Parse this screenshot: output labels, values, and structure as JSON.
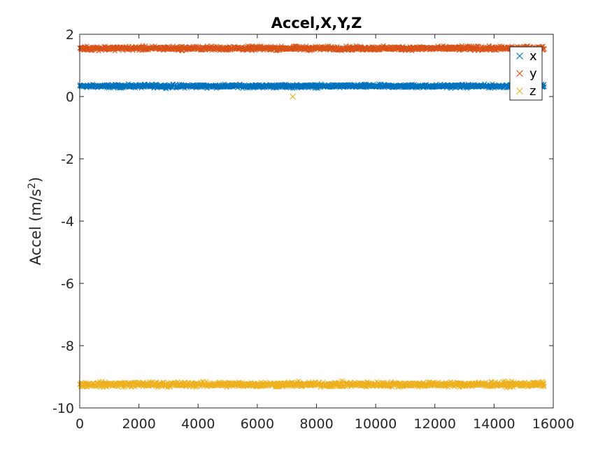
{
  "chart_data": {
    "type": "scatter",
    "title": "Accel,X,Y,Z",
    "xlabel": "",
    "ylabel": "Accel (m/s",
    "ylabel_superscript": "2",
    "ylabel_suffix": ")",
    "xlim": [
      0,
      16000
    ],
    "ylim": [
      -10,
      2
    ],
    "x_ticks": [
      0,
      2000,
      4000,
      6000,
      8000,
      10000,
      12000,
      14000,
      16000
    ],
    "y_ticks": [
      -10,
      -8,
      -6,
      -4,
      -2,
      0,
      2
    ],
    "grid": false,
    "legend_position": "top-right",
    "marker": "x",
    "series": [
      {
        "name": "x",
        "color": "#0072BD",
        "x_range": [
          0,
          15700
        ],
        "mean": 0.33,
        "noise_band": [
          0.25,
          0.42
        ]
      },
      {
        "name": "y",
        "color": "#D95319",
        "x_range": [
          0,
          15700
        ],
        "mean": 1.55,
        "noise_band": [
          1.45,
          1.65
        ]
      },
      {
        "name": "z",
        "color": "#EDB120",
        "x_range": [
          0,
          15700
        ],
        "mean": -9.25,
        "noise_band": [
          -9.37,
          -9.12
        ],
        "outliers": [
          [
            7200,
            0.0
          ]
        ]
      }
    ]
  }
}
